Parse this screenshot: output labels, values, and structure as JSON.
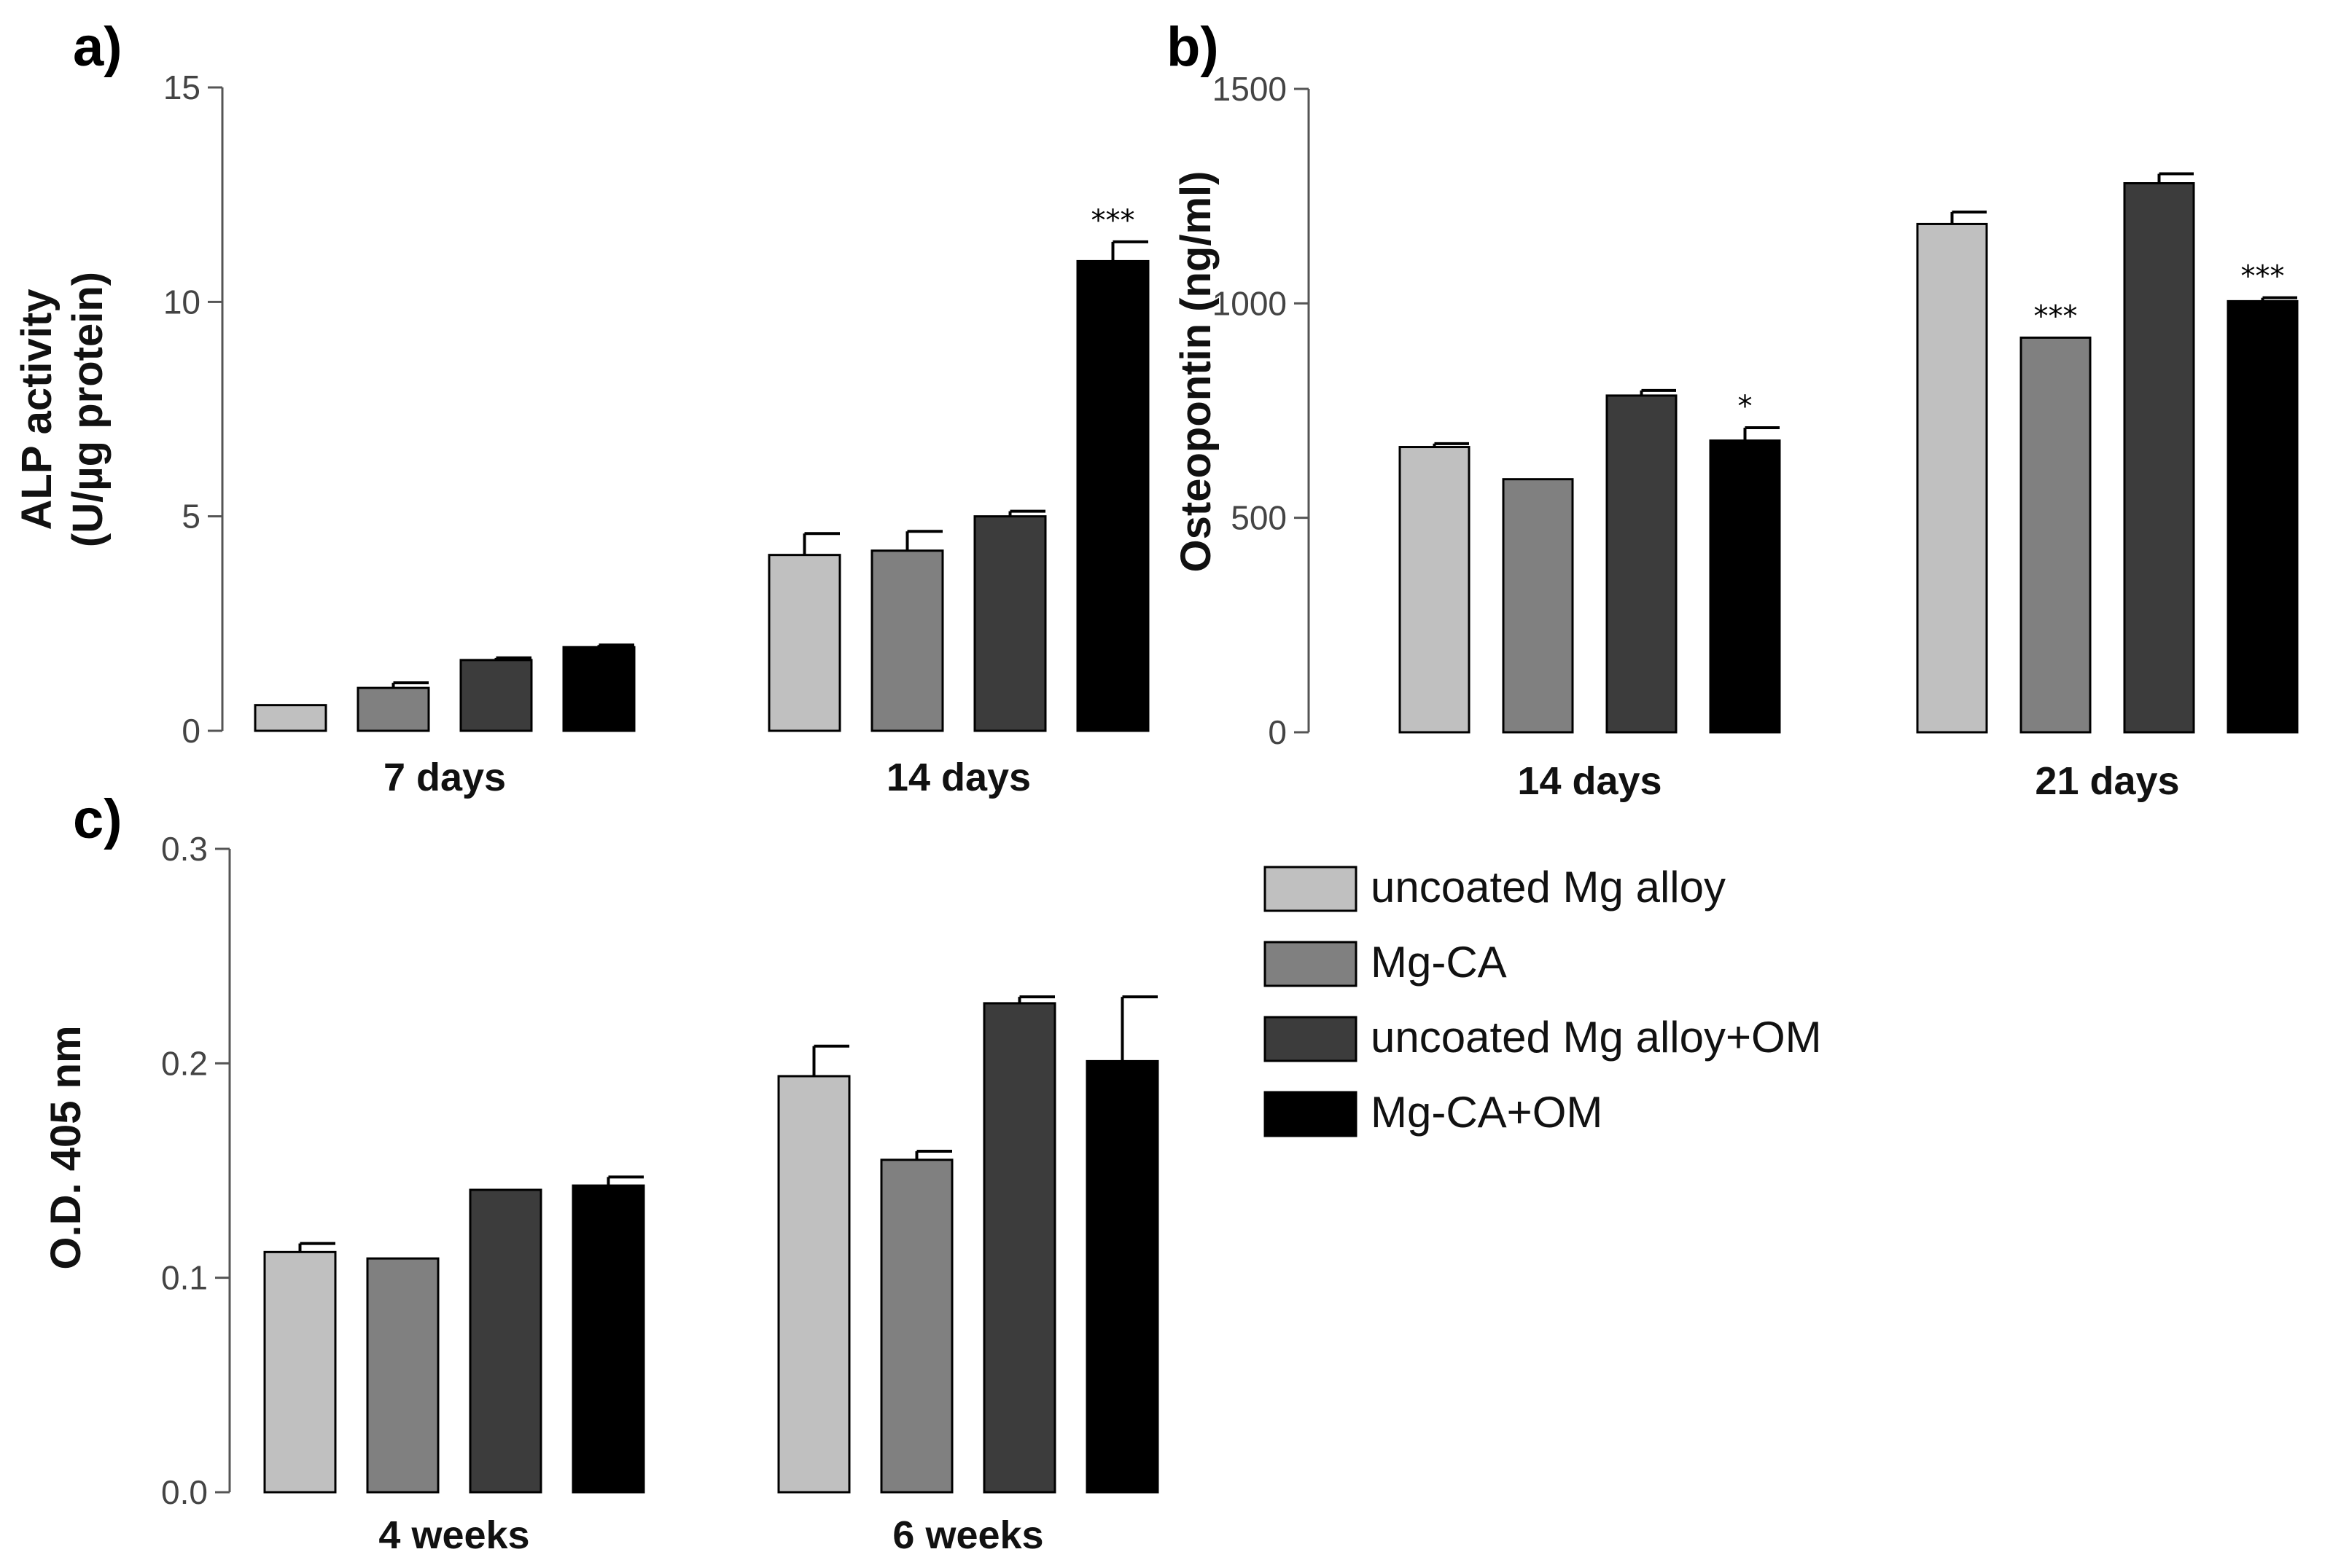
{
  "chart_data": [
    {
      "type": "bar",
      "panel_label": "a)",
      "title": "",
      "xlabel": "",
      "ylabel": [
        "ALP activity",
        "(U/µg protein)"
      ],
      "ylim": [
        0,
        15
      ],
      "yticks": [
        0,
        5,
        10,
        15
      ],
      "ytick_labels": [
        "0",
        "5",
        "10",
        "15"
      ],
      "categories": [
        "7 days",
        "14 days"
      ],
      "series": [
        {
          "name": "uncoated Mg alloy",
          "color": "#c0c0c0",
          "values": [
            0.6,
            4.1
          ],
          "errors": [
            0.0,
            0.5
          ],
          "sig": [
            "",
            ""
          ]
        },
        {
          "name": "Mg-CA",
          "color": "#808080",
          "values": [
            1.0,
            4.2
          ],
          "errors": [
            0.12,
            0.45
          ],
          "sig": [
            "",
            ""
          ]
        },
        {
          "name": "uncoated Mg alloy+OM",
          "color": "#3c3c3c",
          "values": [
            1.65,
            5.0
          ],
          "errors": [
            0.05,
            0.12
          ],
          "sig": [
            "",
            ""
          ]
        },
        {
          "name": "Mg-CA+OM",
          "color": "#000000",
          "values": [
            1.95,
            10.95
          ],
          "errors": [
            0.05,
            0.45
          ],
          "sig": [
            "",
            "***"
          ]
        }
      ]
    },
    {
      "type": "bar",
      "panel_label": "b)",
      "title": "",
      "xlabel": "",
      "ylabel": [
        "Osteopontin (ng/ml)"
      ],
      "ylim": [
        0,
        1500
      ],
      "yticks": [
        0,
        500,
        1000,
        1500
      ],
      "ytick_labels": [
        "0",
        "500",
        "1000",
        "1500"
      ],
      "categories": [
        "14 days",
        "21 days"
      ],
      "series": [
        {
          "name": "uncoated Mg alloy",
          "color": "#c0c0c0",
          "values": [
            665,
            1185
          ],
          "errors": [
            8,
            28
          ],
          "sig": [
            "",
            ""
          ]
        },
        {
          "name": "Mg-CA",
          "color": "#808080",
          "values": [
            590,
            920
          ],
          "errors": [
            0,
            0
          ],
          "sig": [
            "",
            "***"
          ]
        },
        {
          "name": "uncoated Mg alloy+OM",
          "color": "#3c3c3c",
          "values": [
            785,
            1280
          ],
          "errors": [
            12,
            22
          ],
          "sig": [
            "",
            ""
          ]
        },
        {
          "name": "Mg-CA+OM",
          "color": "#000000",
          "values": [
            680,
            1005
          ],
          "errors": [
            30,
            8
          ],
          "sig": [
            "*",
            "***"
          ]
        }
      ]
    },
    {
      "type": "bar",
      "panel_label": "c)",
      "title": "",
      "xlabel": "",
      "ylabel": [
        "O.D. 405 nm"
      ],
      "ylim": [
        0,
        0.3
      ],
      "yticks": [
        0,
        0.1,
        0.2,
        0.3
      ],
      "ytick_labels": [
        "0.0",
        "0.1",
        "0.2",
        "0.3"
      ],
      "categories": [
        "4 weeks",
        "6 weeks"
      ],
      "series": [
        {
          "name": "uncoated Mg alloy",
          "color": "#c0c0c0",
          "values": [
            0.112,
            0.194
          ],
          "errors": [
            0.004,
            0.014
          ],
          "sig": [
            "",
            ""
          ]
        },
        {
          "name": "Mg-CA",
          "color": "#808080",
          "values": [
            0.109,
            0.155
          ],
          "errors": [
            0.0,
            0.004
          ],
          "sig": [
            "",
            ""
          ]
        },
        {
          "name": "uncoated Mg alloy+OM",
          "color": "#3c3c3c",
          "values": [
            0.141,
            0.228
          ],
          "errors": [
            0.0,
            0.003
          ],
          "sig": [
            "",
            ""
          ]
        },
        {
          "name": "Mg-CA+OM",
          "color": "#000000",
          "values": [
            0.143,
            0.201
          ],
          "errors": [
            0.004,
            0.03
          ],
          "sig": [
            "",
            ""
          ]
        }
      ]
    }
  ],
  "legend": {
    "items": [
      {
        "label": "uncoated Mg alloy",
        "color": "#c0c0c0"
      },
      {
        "label": "Mg-CA",
        "color": "#808080"
      },
      {
        "label": "uncoated Mg alloy+OM",
        "color": "#3c3c3c"
      },
      {
        "label": "Mg-CA+OM",
        "color": "#000000"
      }
    ]
  }
}
